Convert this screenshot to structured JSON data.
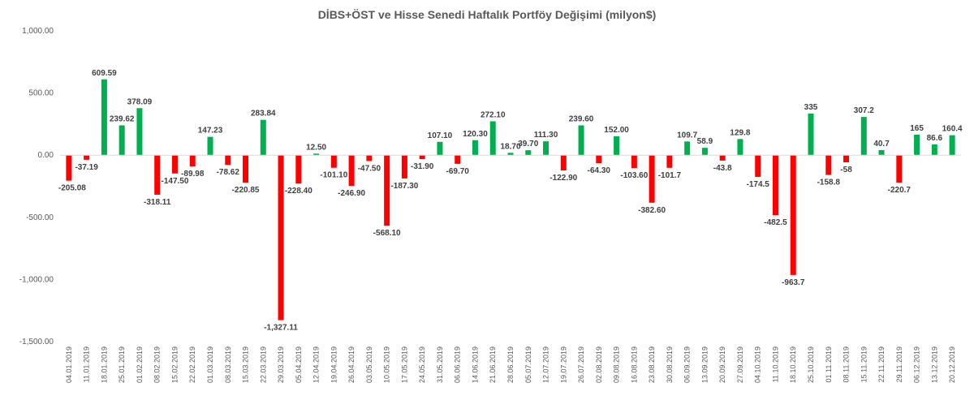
{
  "chart_data": {
    "type": "bar",
    "title": "DİBS+ÖST ve Hisse Senedi Haftalık Portföy Değişimi (milyon$)",
    "xlabel": "",
    "ylabel": "",
    "ylim": [
      -1500,
      1000
    ],
    "yticks": [
      1000,
      500,
      0,
      -500,
      -1000,
      -1500
    ],
    "ytick_labels": [
      "1,000.00",
      "500.00",
      "0.00",
      "-500.00",
      "-1,000.00",
      "-1,500.00"
    ],
    "grid": false,
    "legend": "none",
    "colors": {
      "positive": "#00b050",
      "negative": "#ff0000"
    },
    "categories": [
      "04.01.2019",
      "11.01.2019",
      "18.01.2019",
      "25.01.2019",
      "01.02.2019",
      "08.02.2019",
      "15.02.2019",
      "22.02.2019",
      "01.03.2019",
      "08.03.2019",
      "15.03.2019",
      "22.03.2019",
      "29.03.2019",
      "05.04.2019",
      "12.04.2019",
      "19.04.2019",
      "26.04.2019",
      "03.05.2019",
      "10.05.2019",
      "17.05.2019",
      "24.05.2019",
      "31.05.2019",
      "06.06.2019",
      "14.06.2019",
      "21.06.2019",
      "28.06.2019",
      "05.07.2019",
      "12.07.2019",
      "19.07.2019",
      "26.07.2019",
      "02.08.2019",
      "09.08.2019",
      "16.08.2019",
      "23.08.2019",
      "30.08.2019",
      "06.09.2019",
      "13.09.2019",
      "20.09.2019",
      "27.09.2019",
      "04.10.2019",
      "11.10.2019",
      "18.10.2019",
      "25.10.2019",
      "01.11.2019",
      "08.11.2019",
      "15.11.2019",
      "22.11.2019",
      "29.11.2019",
      "06.12.2019",
      "13.12.2019",
      "20.12.2019"
    ],
    "values": [
      -205.08,
      -37.19,
      609.59,
      239.62,
      378.09,
      -318.11,
      -147.5,
      -89.98,
      147.23,
      -78.62,
      -220.85,
      283.84,
      -1327.11,
      -228.4,
      12.5,
      -101.1,
      -246.9,
      -47.5,
      -568.1,
      -187.3,
      -31.9,
      107.1,
      -69.7,
      120.3,
      272.1,
      18.7,
      39.7,
      111.3,
      -122.9,
      239.6,
      -64.3,
      152,
      -103.6,
      -382.6,
      -101.7,
      109.7,
      58.9,
      -43.8,
      129.8,
      -174.5,
      -482.5,
      -963.7,
      335,
      -158.8,
      -58,
      307.2,
      40.7,
      -220.7,
      165,
      86.6,
      160.4
    ],
    "data_labels": [
      "-205.08",
      "-37.19",
      "609.59",
      "239.62",
      "378.09",
      "-318.11",
      "-147.50",
      "-89.98",
      "147.23",
      "-78.62",
      "-220.85",
      "283.84",
      "-1,327.11",
      "-228.40",
      "12.50",
      "-101.10",
      "-246.90",
      "-47.50",
      "-568.10",
      "-187.30",
      "-31.90",
      "107.10",
      "-69.70",
      "120.30",
      "272.10",
      "18.70",
      "39.70",
      "111.30",
      "-122.90",
      "239.60",
      "-64.30",
      "152.00",
      "-103.60",
      "-382.60",
      "-101.7",
      "109.7",
      "58.9",
      "-43.8",
      "129.8",
      "-174.5",
      "-482.5",
      "-963.7",
      "335",
      "-158.8",
      "-58",
      "307.2",
      "40.7",
      "-220.7",
      "165",
      "86.6",
      "160.4"
    ]
  }
}
